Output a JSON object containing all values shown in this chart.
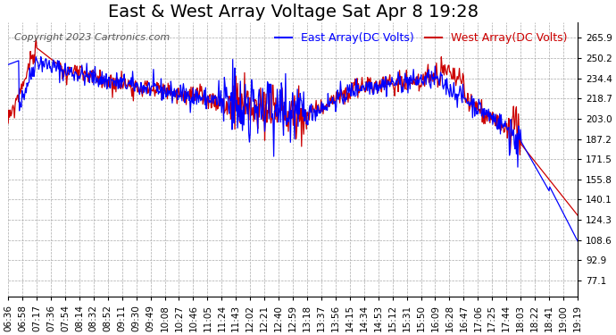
{
  "title": "East & West Array Voltage Sat Apr 8 19:28",
  "copyright": "Copyright 2023 Cartronics.com",
  "legend_east": "East Array(DC Volts)",
  "legend_west": "West Array(DC Volts)",
  "color_east": "#0000ff",
  "color_west": "#cc0000",
  "background_color": "#ffffff",
  "grid_color": "#aaaaaa",
  "yticks": [
    77.1,
    92.9,
    108.6,
    124.3,
    140.1,
    155.8,
    171.5,
    187.2,
    203.0,
    218.7,
    234.4,
    250.2,
    265.9
  ],
  "ylim": [
    65,
    278
  ],
  "xtick_labels": [
    "06:36",
    "06:58",
    "07:17",
    "07:36",
    "07:54",
    "08:14",
    "08:32",
    "08:52",
    "09:11",
    "09:30",
    "09:49",
    "10:08",
    "10:27",
    "10:46",
    "11:05",
    "11:24",
    "11:43",
    "12:02",
    "12:21",
    "12:40",
    "12:59",
    "13:18",
    "13:37",
    "13:56",
    "14:15",
    "14:34",
    "14:53",
    "15:12",
    "15:31",
    "15:50",
    "16:09",
    "16:28",
    "16:47",
    "17:06",
    "17:25",
    "17:44",
    "18:03",
    "18:22",
    "18:41",
    "19:00",
    "19:19"
  ],
  "title_fontsize": 14,
  "tick_fontsize": 7.5,
  "legend_fontsize": 9,
  "copyright_fontsize": 8,
  "line_width": 0.9
}
